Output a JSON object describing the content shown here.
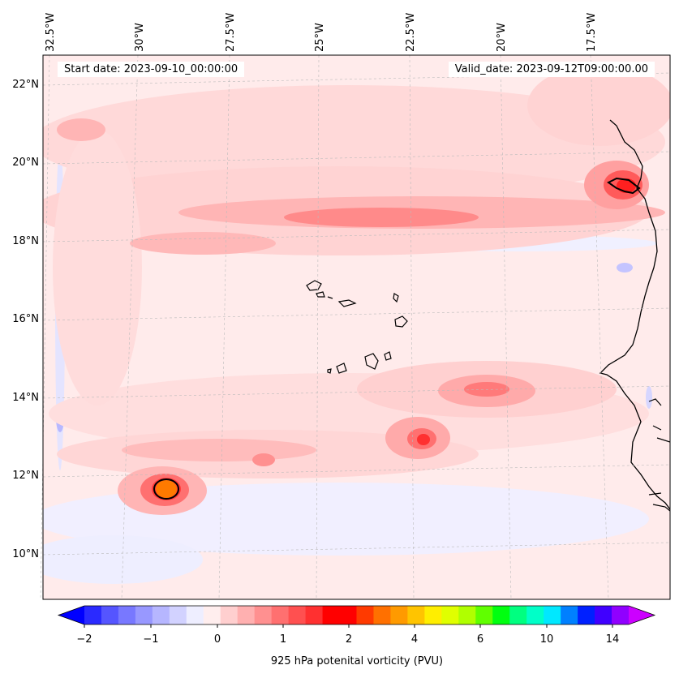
{
  "header": {
    "start_date": "Start date: 2023-09-10_00:00:00",
    "valid_date": "Valid_date: 2023-09-12T09:00:00.00"
  },
  "longitude_labels": [
    "32.5°W",
    "30°W",
    "27.5°W",
    "25°W",
    "22.5°W",
    "20°W",
    "17.5°W"
  ],
  "latitude_labels": [
    "22°N",
    "20°N",
    "18°N",
    "16°N",
    "14°N",
    "12°N",
    "10°N"
  ],
  "colorbar": {
    "tick_labels": [
      "−2",
      "−1",
      "0",
      "1",
      "2",
      "4",
      "6",
      "10",
      "14"
    ],
    "label": "925 hPa potenital vorticity (PVU)",
    "colors": [
      "#0000ff",
      "#2a2aff",
      "#5555ff",
      "#7878ff",
      "#9898ff",
      "#b6b6ff",
      "#d2d2ff",
      "#eeeeff",
      "#ffeeee",
      "#ffcfcf",
      "#ffb0b0",
      "#ff9090",
      "#ff7070",
      "#ff5050",
      "#ff3030",
      "#ff0000",
      "#ff0000",
      "#ff3a00",
      "#ff7000",
      "#ff9a00",
      "#ffc400",
      "#ffee00",
      "#e0ff00",
      "#b0ff00",
      "#60ff00",
      "#00ff10",
      "#00ff80",
      "#00ffc8",
      "#00e8ff",
      "#0080ff",
      "#0020ff",
      "#4000ff",
      "#9000ff",
      "#cc00ff"
    ]
  },
  "field_colors": {
    "background": "#ffebeb",
    "band_light": "#ffd6d6",
    "band_mid": "#ffb3b3",
    "band_strong": "#ff8080",
    "core": "#ff4040",
    "hot": "#ff7a00",
    "negative": "#eeeeff",
    "negative_strong": "#c4c4ff",
    "land": "#ffffff"
  }
}
